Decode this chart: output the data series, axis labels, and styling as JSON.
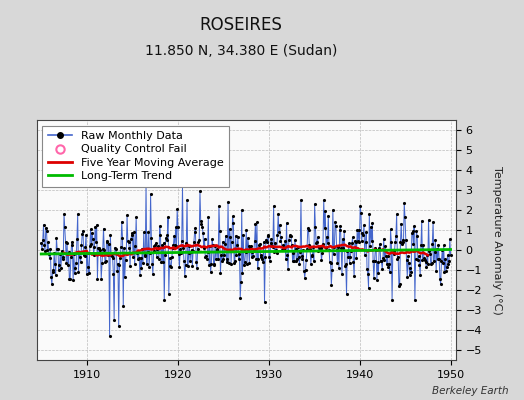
{
  "title": "ROSEIRES",
  "subtitle": "11.850 N, 34.380 E (Sudan)",
  "ylabel": "Temperature Anomaly (°C)",
  "watermark": "Berkeley Earth",
  "xlim": [
    1904.5,
    1950.5
  ],
  "ylim": [
    -5.5,
    6.5
  ],
  "yticks": [
    -5,
    -4,
    -3,
    -2,
    -1,
    0,
    1,
    2,
    3,
    4,
    5,
    6
  ],
  "xticks": [
    1910,
    1920,
    1930,
    1940,
    1950
  ],
  "raw_color": "#4466CC",
  "moving_avg_color": "#DD0000",
  "trend_color": "#00BB00",
  "qc_color": "#FF66AA",
  "background_color": "#D8D8D8",
  "plot_background": "#FAFAFA",
  "grid_color": "#BBBBBB",
  "title_fontsize": 12,
  "subtitle_fontsize": 10,
  "legend_fontsize": 8,
  "seed": 42
}
